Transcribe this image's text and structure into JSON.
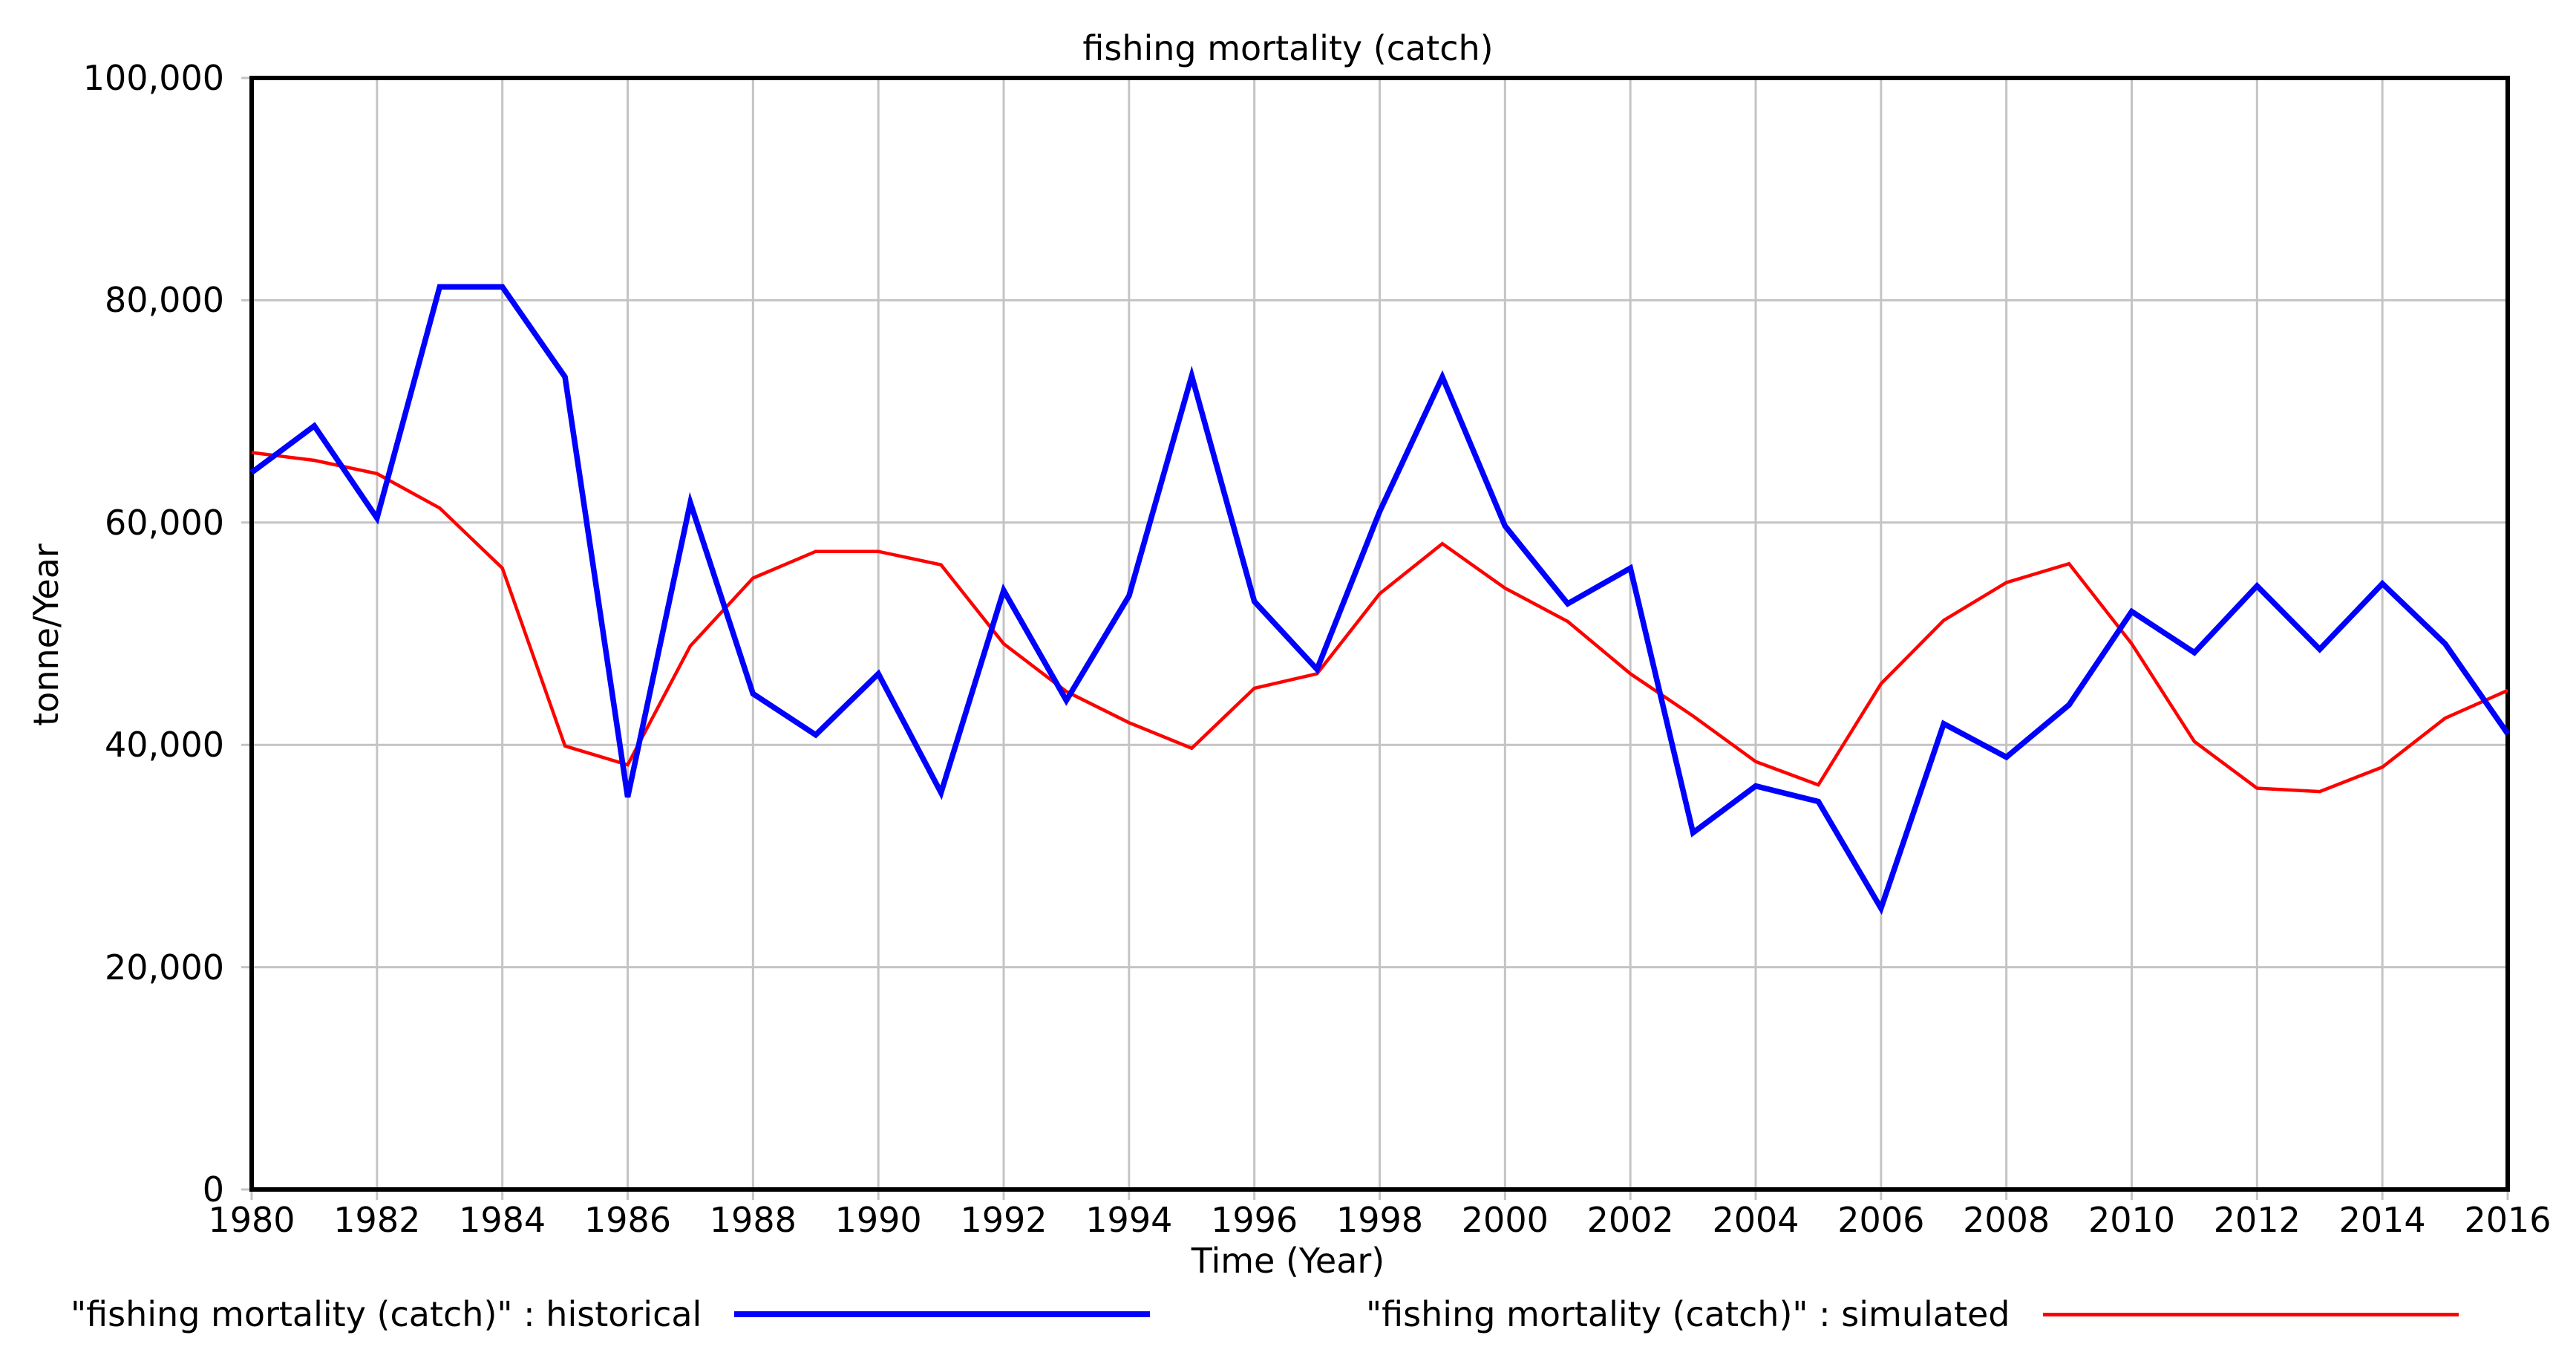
{
  "chart_data": {
    "type": "line",
    "title": "fishing mortality (catch)",
    "xlabel": "Time (Year)",
    "ylabel": "tonne/Year",
    "xlim": [
      1980,
      2016
    ],
    "ylim": [
      0,
      100000
    ],
    "xticks": [
      1980,
      1982,
      1984,
      1986,
      1988,
      1990,
      1992,
      1994,
      1996,
      1998,
      2000,
      2002,
      2004,
      2006,
      2008,
      2010,
      2012,
      2014,
      2016
    ],
    "yticks": [
      0,
      20000,
      40000,
      60000,
      80000,
      100000
    ],
    "grid": true,
    "grid_color": "#c4c4c4",
    "frame_color": "#000000",
    "legend_position": "bottom",
    "x": [
      1980,
      1981,
      1982,
      1983,
      1984,
      1985,
      1986,
      1987,
      1988,
      1989,
      1990,
      1991,
      1992,
      1993,
      1994,
      1995,
      1996,
      1997,
      1998,
      1999,
      2000,
      2001,
      2002,
      2003,
      2004,
      2005,
      2006,
      2007,
      2008,
      2009,
      2010,
      2011,
      2012,
      2013,
      2014,
      2015,
      2016
    ],
    "series": [
      {
        "name": "\"fishing mortality (catch)\" : historical",
        "color": "#0000ff",
        "line_width": 7.5,
        "values": [
          64500,
          68700,
          60400,
          81200,
          81200,
          73100,
          35300,
          61800,
          44600,
          40900,
          46400,
          35700,
          53900,
          44000,
          53400,
          73200,
          52900,
          46800,
          61000,
          73100,
          59700,
          52700,
          55900,
          32100,
          36300,
          34900,
          25300,
          41900,
          38900,
          43600,
          52000,
          48300,
          54300,
          48600,
          54500,
          49100,
          41000
        ]
      },
      {
        "name": "\"fishing mortality (catch)\" : simulated",
        "color": "#ff0000",
        "line_width": 4.5,
        "values": [
          66300,
          65600,
          64400,
          61300,
          55900,
          39900,
          38200,
          48900,
          55000,
          57400,
          57400,
          56200,
          49100,
          44800,
          42000,
          39700,
          45100,
          46400,
          53600,
          58100,
          54100,
          51100,
          46400,
          42600,
          38500,
          36400,
          45500,
          51200,
          54600,
          56300,
          49100,
          40300,
          36100,
          35800,
          38000,
          42400,
          44900
        ]
      }
    ]
  }
}
